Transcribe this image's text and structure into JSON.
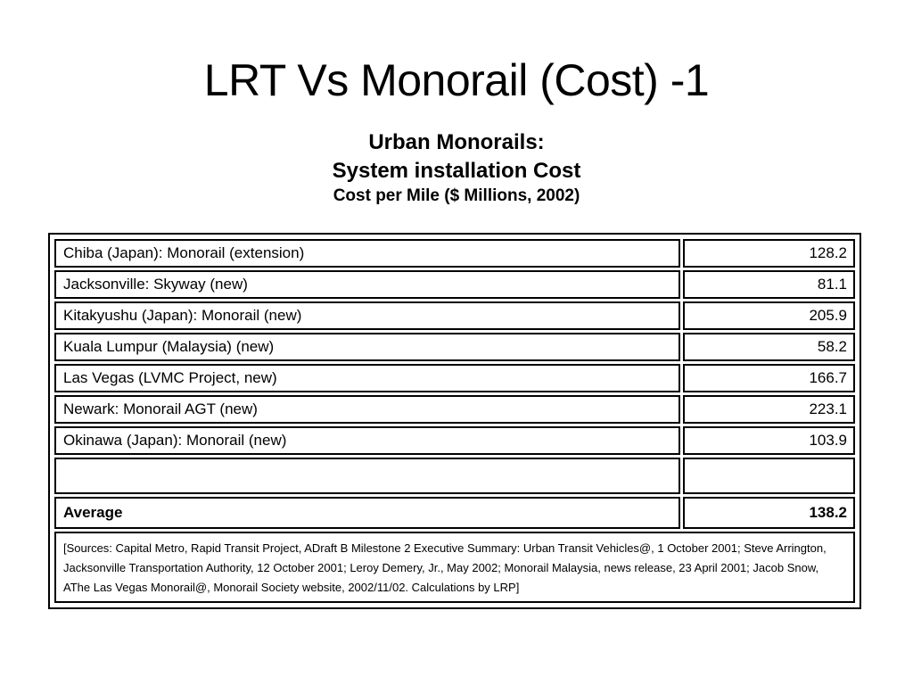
{
  "slide": {
    "title": "LRT Vs Monorail (Cost) -1"
  },
  "heading": {
    "line1": "Urban Monorails:",
    "line2": "System installation Cost",
    "line3": "Cost per Mile ($ Millions, 2002)"
  },
  "table": {
    "rows": [
      {
        "system": "Chiba (Japan): Monorail (extension)",
        "cost": "128.2"
      },
      {
        "system": "Jacksonville: Skyway (new)",
        "cost": "81.1"
      },
      {
        "system": "Kitakyushu (Japan): Monorail (new)",
        "cost": "205.9"
      },
      {
        "system": "Kuala Lumpur (Malaysia) (new)",
        "cost": "58.2"
      },
      {
        "system": "Las Vegas (LVMC Project, new)",
        "cost": "166.7"
      },
      {
        "system": "Newark: Monorail AGT (new)",
        "cost": "223.1"
      },
      {
        "system": "Okinawa (Japan): Monorail (new)",
        "cost": "103.9"
      }
    ],
    "average_label": "Average",
    "average_value": "138.2",
    "sources": "[Sources: Capital Metro, Rapid Transit Project, ADraft B Milestone 2 Executive Summary: Urban Transit Vehicles@, 1 October 2001; Steve Arrington, Jacksonville Transportation Authority, 12 October 2001; Leroy Demery, Jr., May 2002; Monorail Malaysia, news release, 23 April 2001; Jacob Snow, AThe Las Vegas Monorail@, Monorail Society website, 2002/11/02. Calculations by LRP]"
  }
}
